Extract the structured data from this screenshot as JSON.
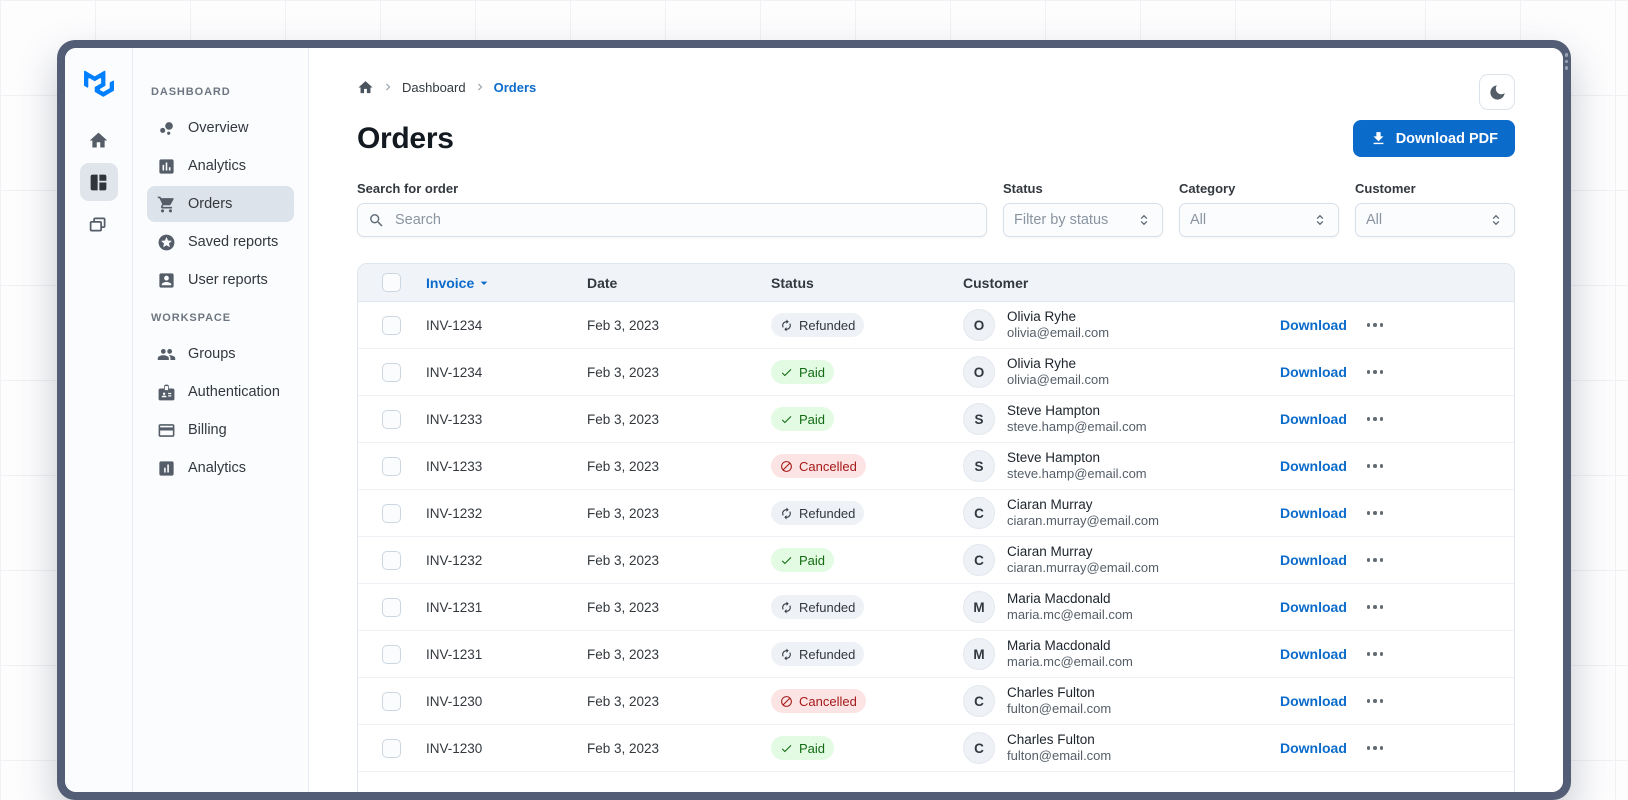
{
  "colors": {
    "accent": "#0b6bcb",
    "frame": "#535d76",
    "success_bg": "#e3fbe3",
    "success_text": "#136c13",
    "danger_bg": "#fce4e4",
    "danger_text": "#a51818",
    "neutral_bg": "#eef1f6",
    "neutral_text": "#32383e"
  },
  "rail": {
    "logo_icon": "mui-logo",
    "items": [
      {
        "icon": "home",
        "selected": false
      },
      {
        "icon": "dashboard",
        "selected": true
      },
      {
        "icon": "window-stack",
        "selected": false
      }
    ]
  },
  "sidebar": {
    "sections": [
      {
        "label": "DASHBOARD",
        "items": [
          {
            "icon": "bubble-chart",
            "label": "Overview",
            "selected": false
          },
          {
            "icon": "bar-chart",
            "label": "Analytics",
            "selected": false
          },
          {
            "icon": "shopping-cart",
            "label": "Orders",
            "selected": true
          },
          {
            "icon": "star-circle",
            "label": "Saved reports",
            "selected": false
          },
          {
            "icon": "person-box",
            "label": "User reports",
            "selected": false
          }
        ]
      },
      {
        "label": "WORKSPACE",
        "items": [
          {
            "icon": "groups",
            "label": "Groups",
            "selected": false
          },
          {
            "icon": "badge",
            "label": "Authentication",
            "selected": false
          },
          {
            "icon": "credit-card",
            "label": "Billing",
            "selected": false
          },
          {
            "icon": "chart-box",
            "label": "Analytics",
            "selected": false
          }
        ]
      }
    ]
  },
  "header": {
    "breadcrumb": {
      "home_icon": "home",
      "items": [
        {
          "label": "Dashboard",
          "active": false
        },
        {
          "label": "Orders",
          "active": true
        }
      ]
    },
    "title": "Orders",
    "mode_toggle_icon": "moon",
    "download_button": {
      "icon": "download",
      "label": "Download PDF"
    }
  },
  "filters": {
    "search": {
      "label": "Search for order",
      "placeholder": "Search",
      "icon": "search"
    },
    "selects": [
      {
        "label": "Status",
        "value": "Filter by status"
      },
      {
        "label": "Category",
        "value": "All"
      },
      {
        "label": "Customer",
        "value": "All"
      }
    ]
  },
  "table": {
    "columns": {
      "invoice": "Invoice",
      "date": "Date",
      "status": "Status",
      "customer": "Customer"
    },
    "sorted_by": "Invoice",
    "row_action_label": "Download",
    "rows": [
      {
        "invoice": "INV-1234",
        "date": "Feb 3, 2023",
        "status": {
          "label": "Refunded",
          "type": "neutral",
          "icon": "refresh"
        },
        "customer": {
          "initial": "O",
          "name": "Olivia Ryhe",
          "email": "olivia@email.com"
        }
      },
      {
        "invoice": "INV-1234",
        "date": "Feb 3, 2023",
        "status": {
          "label": "Paid",
          "type": "success",
          "icon": "check"
        },
        "customer": {
          "initial": "O",
          "name": "Olivia Ryhe",
          "email": "olivia@email.com"
        }
      },
      {
        "invoice": "INV-1233",
        "date": "Feb 3, 2023",
        "status": {
          "label": "Paid",
          "type": "success",
          "icon": "check"
        },
        "customer": {
          "initial": "S",
          "name": "Steve Hampton",
          "email": "steve.hamp@email.com"
        }
      },
      {
        "invoice": "INV-1233",
        "date": "Feb 3, 2023",
        "status": {
          "label": "Cancelled",
          "type": "danger",
          "icon": "block"
        },
        "customer": {
          "initial": "S",
          "name": "Steve Hampton",
          "email": "steve.hamp@email.com"
        }
      },
      {
        "invoice": "INV-1232",
        "date": "Feb 3, 2023",
        "status": {
          "label": "Refunded",
          "type": "neutral",
          "icon": "refresh"
        },
        "customer": {
          "initial": "C",
          "name": "Ciaran Murray",
          "email": "ciaran.murray@email.com"
        }
      },
      {
        "invoice": "INV-1232",
        "date": "Feb 3, 2023",
        "status": {
          "label": "Paid",
          "type": "success",
          "icon": "check"
        },
        "customer": {
          "initial": "C",
          "name": "Ciaran Murray",
          "email": "ciaran.murray@email.com"
        }
      },
      {
        "invoice": "INV-1231",
        "date": "Feb 3, 2023",
        "status": {
          "label": "Refunded",
          "type": "neutral",
          "icon": "refresh"
        },
        "customer": {
          "initial": "M",
          "name": "Maria Macdonald",
          "email": "maria.mc@email.com"
        }
      },
      {
        "invoice": "INV-1231",
        "date": "Feb 3, 2023",
        "status": {
          "label": "Refunded",
          "type": "neutral",
          "icon": "refresh"
        },
        "customer": {
          "initial": "M",
          "name": "Maria Macdonald",
          "email": "maria.mc@email.com"
        }
      },
      {
        "invoice": "INV-1230",
        "date": "Feb 3, 2023",
        "status": {
          "label": "Cancelled",
          "type": "danger",
          "icon": "block"
        },
        "customer": {
          "initial": "C",
          "name": "Charles Fulton",
          "email": "fulton@email.com"
        }
      },
      {
        "invoice": "INV-1230",
        "date": "Feb 3, 2023",
        "status": {
          "label": "Paid",
          "type": "success",
          "icon": "check"
        },
        "customer": {
          "initial": "C",
          "name": "Charles Fulton",
          "email": "fulton@email.com"
        }
      },
      {
        "invoice": "",
        "date": "",
        "status": null,
        "customer": {
          "initial": "",
          "name": "",
          "email": ""
        },
        "partial": true
      }
    ]
  }
}
